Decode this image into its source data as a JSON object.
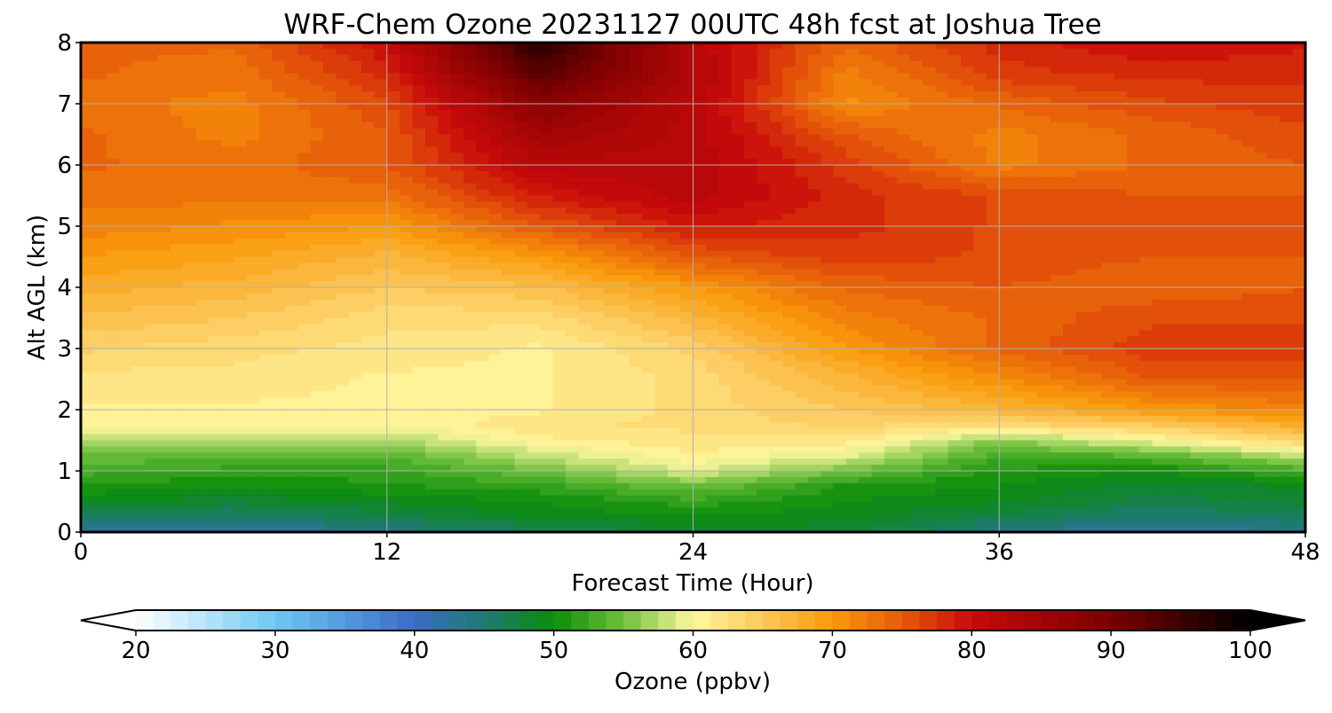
{
  "chart_data": {
    "type": "heatmap",
    "title": "WRF-Chem Ozone  20231127 00UTC 48h fcst at Joshua Tree",
    "xlabel": "Forecast Time (Hour)",
    "ylabel": "Alt AGL (km)",
    "xlim": [
      0,
      48
    ],
    "ylim": [
      0,
      8
    ],
    "x_ticks": [
      "0",
      "12",
      "24",
      "36",
      "48"
    ],
    "y_ticks": [
      "0",
      "1",
      "2",
      "3",
      "4",
      "5",
      "6",
      "7",
      "8"
    ],
    "grid": true,
    "x": [
      0,
      6,
      12,
      18,
      24,
      30,
      36,
      42,
      48
    ],
    "y": [
      0,
      0.25,
      0.5,
      0.75,
      1,
      1.25,
      1.5,
      1.75,
      2,
      2.5,
      3,
      3.5,
      4,
      4.5,
      5,
      5.5,
      6,
      6.5,
      7,
      7.5,
      8
    ],
    "z": [
      [
        42,
        42,
        44,
        46,
        48,
        48,
        44,
        42,
        44
      ],
      [
        46,
        45,
        47,
        49,
        50,
        49,
        47,
        45,
        46
      ],
      [
        49,
        48,
        49,
        50,
        52,
        50,
        49,
        47,
        48
      ],
      [
        51,
        50,
        51,
        52,
        55,
        51,
        50,
        48,
        49
      ],
      [
        53,
        52,
        52,
        55,
        59,
        55,
        51,
        50,
        53
      ],
      [
        55,
        54,
        54,
        58,
        61,
        59,
        53,
        54,
        58
      ],
      [
        58,
        57,
        57,
        61,
        62,
        62,
        56,
        60,
        64
      ],
      [
        60,
        60,
        60,
        62,
        63,
        64,
        63,
        65,
        68
      ],
      [
        61,
        61,
        61,
        61,
        63,
        65,
        67,
        70,
        72
      ],
      [
        62,
        62,
        61,
        61,
        63,
        67,
        71,
        75,
        75
      ],
      [
        64,
        63,
        62,
        61,
        64,
        70,
        74,
        77,
        77
      ],
      [
        66,
        65,
        63,
        63,
        67,
        72,
        74,
        76,
        76
      ],
      [
        68,
        67,
        65,
        66,
        70,
        74,
        75,
        74,
        75
      ],
      [
        70,
        69,
        67,
        70,
        75,
        77,
        76,
        75,
        75
      ],
      [
        72,
        71,
        70,
        75,
        79,
        78,
        76,
        75,
        75
      ],
      [
        73,
        73,
        73,
        79,
        82,
        78,
        76,
        75,
        75
      ],
      [
        74,
        73,
        75,
        82,
        82,
        77,
        72,
        74,
        75
      ],
      [
        74,
        72,
        75,
        85,
        82,
        75,
        72,
        74,
        76
      ],
      [
        73,
        72,
        76,
        88,
        82,
        71,
        74,
        76,
        77
      ],
      [
        74,
        73,
        78,
        93,
        83,
        72,
        77,
        78,
        78
      ],
      [
        74,
        74,
        80,
        97,
        82,
        74,
        78,
        80,
        79
      ]
    ],
    "colorbar": {
      "label": "Ozone  (ppbv)",
      "min": 20,
      "max": 100,
      "extend": "both",
      "ticks": [
        "20",
        "30",
        "40",
        "50",
        "60",
        "70",
        "80",
        "90",
        "100"
      ],
      "tick_values": [
        20,
        30,
        40,
        50,
        60,
        70,
        80,
        90,
        100
      ],
      "colormap_stops": [
        {
          "value": 20,
          "color": "#ffffff"
        },
        {
          "value": 30,
          "color": "#6ec8f5"
        },
        {
          "value": 40,
          "color": "#3a6cc6"
        },
        {
          "value": 45,
          "color": "#1f7a73"
        },
        {
          "value": 50,
          "color": "#0a8c0a"
        },
        {
          "value": 55,
          "color": "#6ec03c"
        },
        {
          "value": 60,
          "color": "#fff8a0"
        },
        {
          "value": 65,
          "color": "#fcc85a"
        },
        {
          "value": 70,
          "color": "#f99a0a"
        },
        {
          "value": 75,
          "color": "#e65a0a"
        },
        {
          "value": 80,
          "color": "#c80a0a"
        },
        {
          "value": 90,
          "color": "#7a0000"
        },
        {
          "value": 100,
          "color": "#000000"
        }
      ]
    }
  }
}
